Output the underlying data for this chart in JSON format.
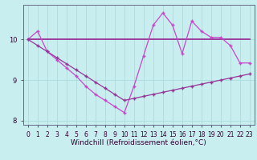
{
  "xlabel": "Windchill (Refroidissement éolien,°C)",
  "background_color": "#c8eef0",
  "grid_color": "#aadddd",
  "line1_color": "#993399",
  "line2_color": "#cc44cc",
  "line1_y": [
    10.0,
    10.0,
    10.0,
    10.0,
    10.0,
    10.0,
    10.0,
    10.0,
    10.0,
    10.0,
    10.0,
    10.0,
    10.0,
    10.0,
    10.0,
    10.0,
    10.0,
    10.0,
    10.0,
    10.0,
    10.0,
    10.0,
    10.0,
    10.0
  ],
  "line2_y": [
    10.0,
    10.2,
    9.7,
    9.5,
    9.3,
    9.1,
    8.85,
    8.65,
    8.5,
    8.35,
    8.2,
    8.85,
    9.6,
    10.35,
    10.65,
    10.35,
    9.65,
    10.45,
    10.2,
    10.05,
    10.05,
    9.85,
    9.42,
    9.42
  ],
  "line3_y": [
    10.0,
    9.85,
    9.7,
    9.55,
    9.4,
    9.25,
    9.1,
    8.95,
    8.8,
    8.65,
    8.5,
    8.55,
    8.6,
    8.65,
    8.7,
    8.75,
    8.8,
    8.85,
    8.9,
    8.95,
    9.0,
    9.05,
    9.1,
    9.15
  ],
  "ylim": [
    7.9,
    10.85
  ],
  "xlim": [
    -0.5,
    23.5
  ],
  "yticks": [
    8,
    9,
    10
  ],
  "xticks": [
    0,
    1,
    2,
    3,
    4,
    5,
    6,
    7,
    8,
    9,
    10,
    11,
    12,
    13,
    14,
    15,
    16,
    17,
    18,
    19,
    20,
    21,
    22,
    23
  ],
  "tick_fontsize": 5.5,
  "xlabel_fontsize": 6.5
}
